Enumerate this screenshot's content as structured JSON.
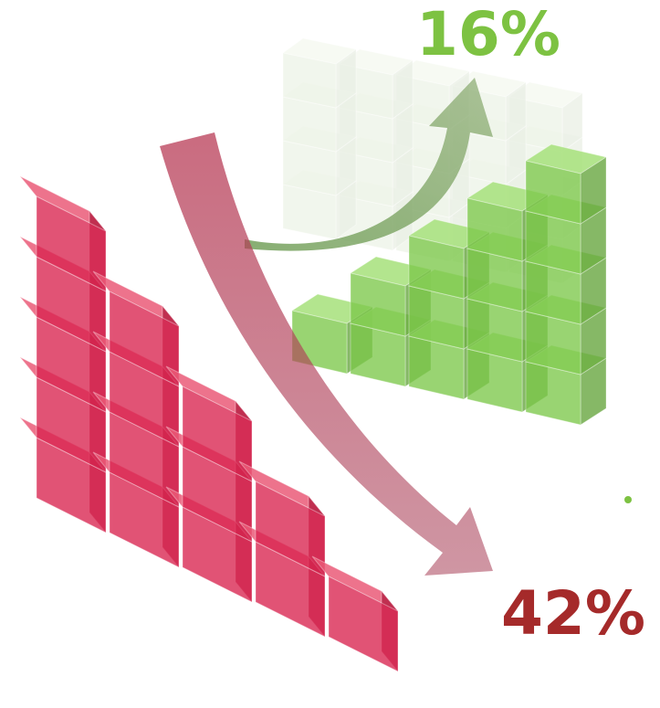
{
  "labels": {
    "increase": "16%",
    "decrease": "42%"
  }
}
